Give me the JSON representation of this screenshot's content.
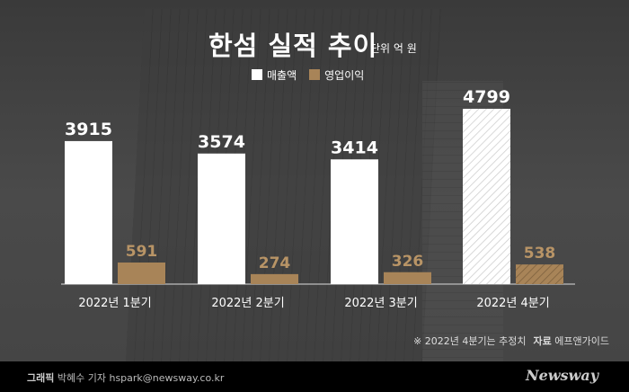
{
  "chart_data": {
    "type": "bar",
    "title": "한섬 실적 추이",
    "unit": "단위 억 원",
    "categories": [
      "2022년 1분기",
      "2022년 2분기",
      "2022년 3분기",
      "2022년 4분기"
    ],
    "series": [
      {
        "name": "매출액",
        "values": [
          3915,
          3574,
          3414,
          4799
        ],
        "color": "#ffffff"
      },
      {
        "name": "영업이익",
        "values": [
          591,
          274,
          326,
          538
        ],
        "color": "#a88458"
      }
    ],
    "estimated_category_index": 3,
    "ylim": [
      0,
      5000
    ]
  },
  "note": "※  2022년 4분기는 추정치",
  "source_label": "자료",
  "source": "에프앤가이드",
  "footer": {
    "graphic_label": "그래픽",
    "credit": "박혜수 기자 hspark@newsway.co.kr",
    "logo": "Newsway"
  }
}
